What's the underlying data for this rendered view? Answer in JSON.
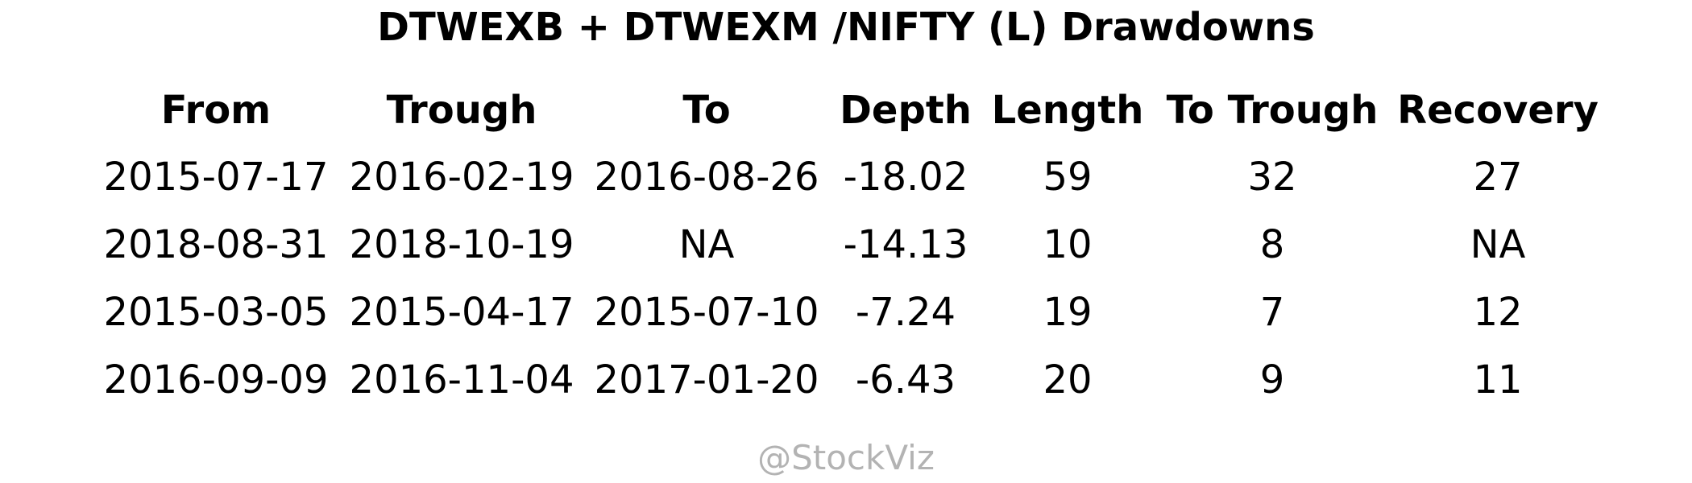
{
  "chart_data": {
    "type": "table",
    "title": "DTWEXB + DTWEXM /NIFTY (L) Drawdowns",
    "columns": [
      "From",
      "Trough",
      "To",
      "Depth",
      "Length",
      "To Trough",
      "Recovery"
    ],
    "rows": [
      [
        "2015-07-17",
        "2016-02-19",
        "2016-08-26",
        "-18.02",
        "59",
        "32",
        "27"
      ],
      [
        "2018-08-31",
        "2018-10-19",
        "NA",
        "-14.13",
        "10",
        "8",
        "NA"
      ],
      [
        "2015-03-05",
        "2015-04-17",
        "2015-07-10",
        "-7.24",
        "19",
        "7",
        "12"
      ],
      [
        "2016-09-09",
        "2016-11-04",
        "2017-01-20",
        "-6.43",
        "20",
        "9",
        "11"
      ]
    ]
  },
  "watermark": "@StockViz"
}
